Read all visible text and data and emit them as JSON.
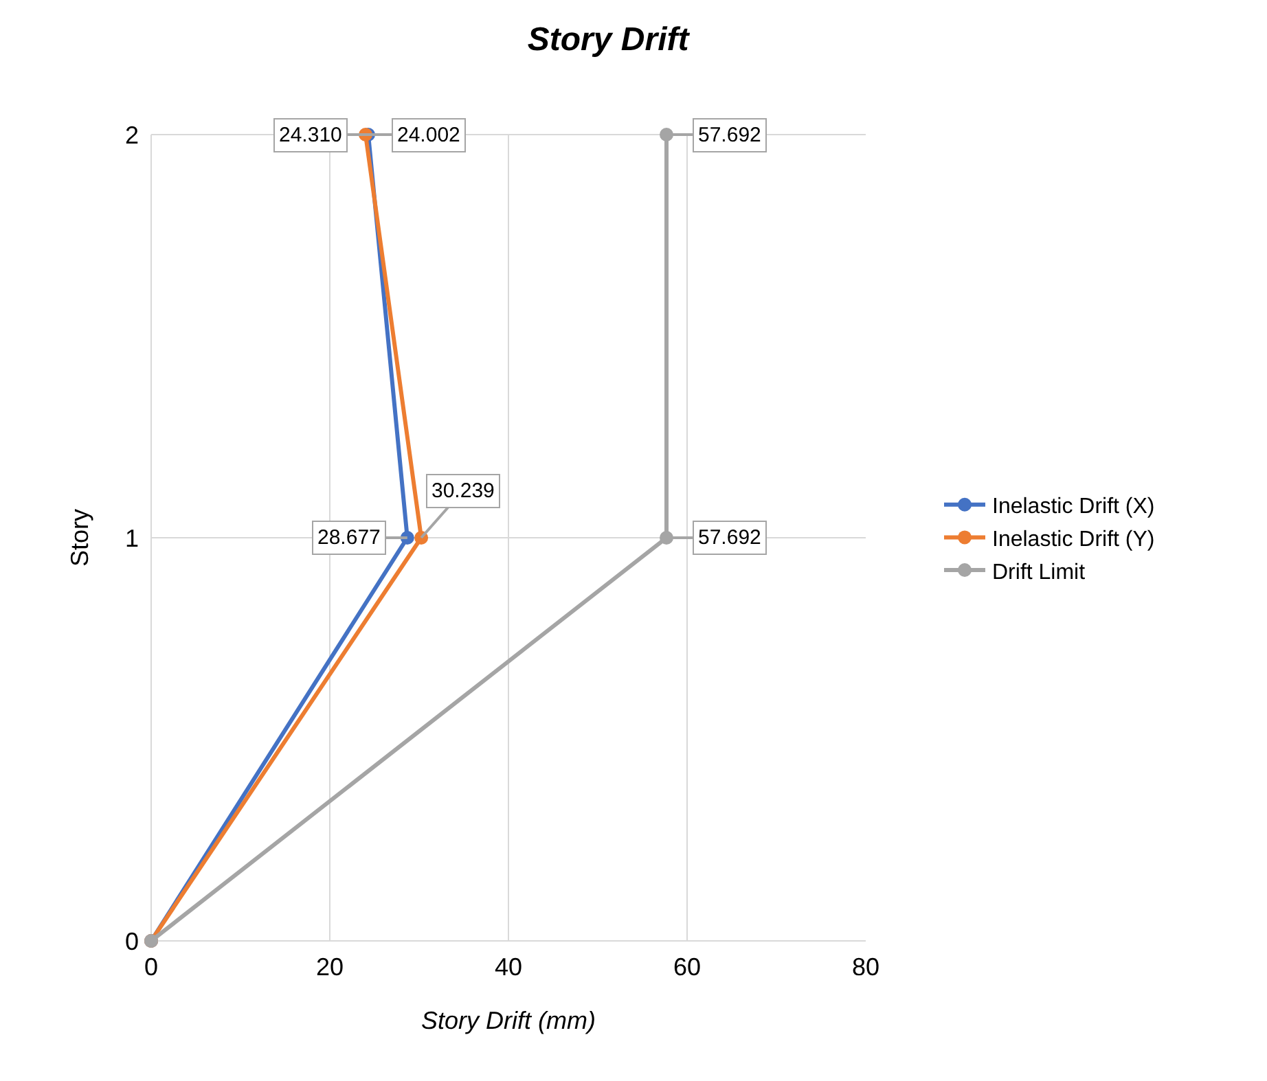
{
  "chart_data": {
    "type": "line",
    "orientation": "horizontal",
    "title": "Story Drift",
    "xlabel": "Story Drift (mm)",
    "ylabel": "Story",
    "categories": [
      "2",
      "1",
      "0"
    ],
    "xlim": [
      0,
      80
    ],
    "xticks": [
      0,
      20,
      40,
      60,
      80
    ],
    "grid": true,
    "legend": "right",
    "marker": "circle",
    "line_style": "solid",
    "series": [
      {
        "name": "Inelastic Drift (X)",
        "color": "#4472c4",
        "values": [
          24.31,
          28.677,
          0
        ],
        "value_labels": [
          "24.310",
          "28.677",
          null
        ]
      },
      {
        "name": "Inelastic Drift (Y)",
        "color": "#ed7d31",
        "values": [
          24.002,
          30.239,
          0
        ],
        "value_labels": [
          "24.002",
          "30.239",
          null
        ]
      },
      {
        "name": "Drift Limit",
        "color": "#a5a5a5",
        "values": [
          57.692,
          57.692,
          0
        ],
        "value_labels": [
          "57.692",
          "57.692",
          null
        ]
      }
    ]
  }
}
